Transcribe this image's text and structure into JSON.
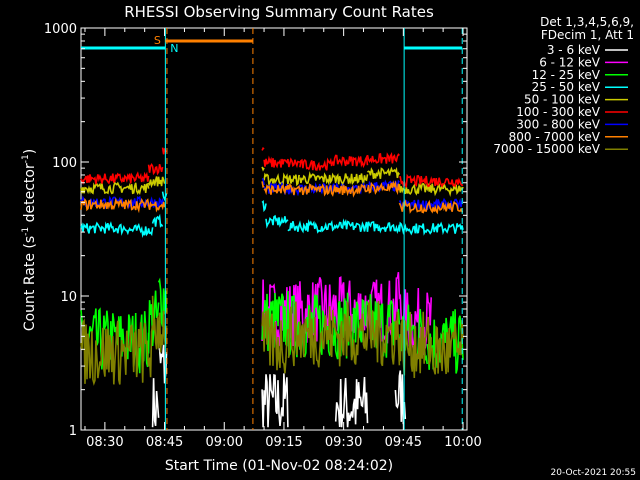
{
  "chart_data": {
    "type": "line",
    "title": "RHESSI Observing Summary Count Rates",
    "xlabel": "Start Time (01-Nov-02 08:24:02)",
    "ylabel_main": "Count Rate (s",
    "ylabel_sup1": "-1",
    "ylabel_mid": " detector",
    "ylabel_sup2": "-1",
    "ylabel_end": ")",
    "yscale": "log",
    "ylim": [
      1,
      1000
    ],
    "xlim_min": [
      0,
      97
    ],
    "x_ticks": [
      "08:30",
      "08:45",
      "09:00",
      "09:15",
      "09:30",
      "09:45",
      "10:00"
    ],
    "x_tick_min": [
      6,
      21,
      36,
      51,
      66,
      81,
      96
    ],
    "y_ticks": [
      "1",
      "10",
      "100",
      "1000"
    ],
    "y_tick_values": [
      1,
      10,
      100,
      1000
    ],
    "legend_header": [
      "Det 1,3,4,5,6,9,",
      "FDecim 1, Att 1"
    ],
    "series": [
      {
        "name": "3 - 6 keV",
        "color": "#ffffff",
        "values": [
          {
            "t0": 0,
            "t1": 18,
            "v": 0
          },
          {
            "t0": 18,
            "t1": 19.5,
            "v": 1.5
          },
          {
            "t0": 19.5,
            "t1": 21.5,
            "v": 3
          },
          {
            "t0": 45.5,
            "t1": 52,
            "v": 1.6
          },
          {
            "t0": 64,
            "t1": 72,
            "v": 1.5
          },
          {
            "t0": 79,
            "t1": 81.5,
            "v": 1.8
          }
        ]
      },
      {
        "name": "6 - 12 keV",
        "color": "#ff00ff",
        "values": [
          {
            "t0": 45.5,
            "t1": 57,
            "v": 7.5
          },
          {
            "t0": 57,
            "t1": 67,
            "v": 7.8
          },
          {
            "t0": 67,
            "t1": 79.5,
            "v": 7.8
          },
          {
            "t0": 79.5,
            "t1": 80.5,
            "v": 11
          },
          {
            "t0": 81,
            "t1": 88,
            "v": 6.5
          }
        ]
      },
      {
        "name": "12 - 25 keV",
        "color": "#00ff00",
        "values": [
          {
            "t0": 0,
            "t1": 17,
            "v": 4.6
          },
          {
            "t0": 17,
            "t1": 19.5,
            "v": 6.5
          },
          {
            "t0": 19.5,
            "t1": 21.5,
            "v": 10
          },
          {
            "t0": 45.5,
            "t1": 52,
            "v": 6.5
          },
          {
            "t0": 52,
            "t1": 80,
            "v": 6
          },
          {
            "t0": 80,
            "t1": 87,
            "v": 5.2
          },
          {
            "t0": 87,
            "t1": 96,
            "v": 4.5
          }
        ]
      },
      {
        "name": "25 - 50 keV",
        "color": "#00ffff",
        "values": [
          {
            "t0": 0,
            "t1": 12,
            "v": 32
          },
          {
            "t0": 12,
            "t1": 18,
            "v": 31
          },
          {
            "t0": 18,
            "t1": 20.5,
            "v": 36
          },
          {
            "t0": 20.5,
            "t1": 21.5,
            "v": 55
          },
          {
            "t0": 45.5,
            "t1": 46.5,
            "v": 48
          },
          {
            "t0": 46.5,
            "t1": 52,
            "v": 36
          },
          {
            "t0": 52,
            "t1": 80,
            "v": 33
          },
          {
            "t0": 80,
            "t1": 96,
            "v": 32
          }
        ]
      },
      {
        "name": "50 - 100 keV",
        "color": "#cccc00",
        "values": [
          {
            "t0": 0,
            "t1": 17,
            "v": 64
          },
          {
            "t0": 17,
            "t1": 21,
            "v": 72
          },
          {
            "t0": 45.5,
            "t1": 46,
            "v": 90
          },
          {
            "t0": 46,
            "t1": 55,
            "v": 74
          },
          {
            "t0": 55,
            "t1": 72,
            "v": 75
          },
          {
            "t0": 72,
            "t1": 80,
            "v": 82
          },
          {
            "t0": 80,
            "t1": 96,
            "v": 63
          }
        ]
      },
      {
        "name": "100 - 300 keV",
        "color": "#ff0000",
        "values": [
          {
            "t0": 0,
            "t1": 17,
            "v": 75
          },
          {
            "t0": 17,
            "t1": 20.5,
            "v": 90
          },
          {
            "t0": 20.5,
            "t1": 21.5,
            "v": 125
          },
          {
            "t0": 45.5,
            "t1": 46,
            "v": 125
          },
          {
            "t0": 46,
            "t1": 55,
            "v": 98
          },
          {
            "t0": 55,
            "t1": 63,
            "v": 95
          },
          {
            "t0": 63,
            "t1": 72,
            "v": 102
          },
          {
            "t0": 72,
            "t1": 80,
            "v": 105
          },
          {
            "t0": 80,
            "t1": 96,
            "v": 72
          }
        ]
      },
      {
        "name": "300 - 800 keV",
        "color": "#0000ff",
        "values": [
          {
            "t0": 0,
            "t1": 21,
            "v": 50
          },
          {
            "t0": 45.5,
            "t1": 46,
            "v": 70
          },
          {
            "t0": 46,
            "t1": 72,
            "v": 63
          },
          {
            "t0": 72,
            "t1": 80,
            "v": 66
          },
          {
            "t0": 80,
            "t1": 96,
            "v": 48
          }
        ]
      },
      {
        "name": "800 - 7000 keV",
        "color": "#ff8000",
        "values": [
          {
            "t0": 0,
            "t1": 21,
            "v": 48
          },
          {
            "t0": 45.5,
            "t1": 46,
            "v": 68
          },
          {
            "t0": 46,
            "t1": 72,
            "v": 62
          },
          {
            "t0": 72,
            "t1": 80,
            "v": 64
          },
          {
            "t0": 80,
            "t1": 96,
            "v": 46
          }
        ]
      },
      {
        "name": "7000 - 15000 keV",
        "color": "#808000",
        "values": [
          {
            "t0": 0,
            "t1": 18,
            "v": 3.8
          },
          {
            "t0": 18,
            "t1": 21.5,
            "v": 6
          },
          {
            "t0": 45.5,
            "t1": 52,
            "v": 4.5
          },
          {
            "t0": 52,
            "t1": 80,
            "v": 5.2
          },
          {
            "t0": 80,
            "t1": 88,
            "v": 4.3
          },
          {
            "t0": 88,
            "t1": 96,
            "v": 3.8
          }
        ]
      }
    ],
    "flags": [
      {
        "label": "S",
        "color": "#ff8000",
        "t0": 21.2,
        "t1": 43.2,
        "style": "solid"
      },
      {
        "label": "N",
        "color": "#00ffff",
        "t0": 0,
        "t1": 21.2,
        "style": "solid"
      },
      {
        "label": "",
        "color": "#00ffff",
        "t0": 81.2,
        "t1": 95.8,
        "style": "solid"
      }
    ],
    "vlines": [
      {
        "t": 21.2,
        "color": "#00ffff",
        "style": "solid"
      },
      {
        "t": 21.6,
        "color": "#ff8000",
        "style": "dashed"
      },
      {
        "t": 43.2,
        "color": "#ff8000",
        "style": "dashed"
      },
      {
        "t": 81.2,
        "color": "#00ffff",
        "style": "solid"
      },
      {
        "t": 95.8,
        "color": "#00ffff",
        "style": "dashed"
      }
    ],
    "gaps": [
      [
        21.6,
        45.5
      ]
    ],
    "timestamp": "20-Oct-2021 20:55",
    "grid": false,
    "legend_position": "right"
  }
}
